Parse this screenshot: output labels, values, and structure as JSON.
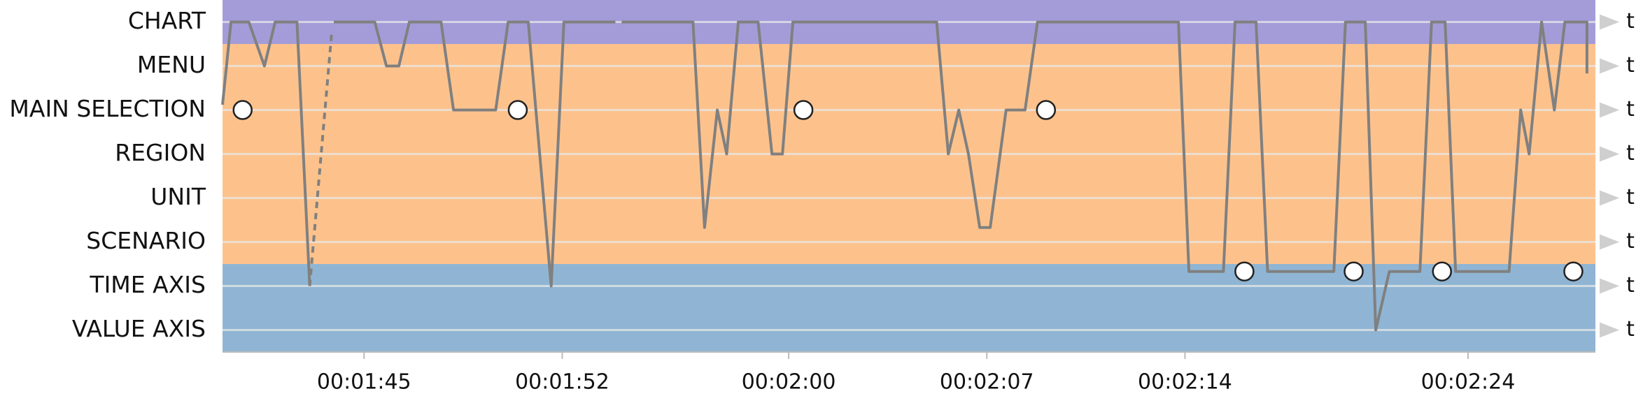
{
  "chart_data": {
    "type": "line",
    "xlim": [
      100,
      148.5
    ],
    "ylim": [
      7.5,
      -0.5
    ],
    "xticks": [
      {
        "value": 105,
        "label": "00:01:45"
      },
      {
        "value": 112,
        "label": "00:01:52"
      },
      {
        "value": 120,
        "label": "00:02:00"
      },
      {
        "value": 127,
        "label": "00:02:07"
      },
      {
        "value": 134,
        "label": "00:02:14"
      },
      {
        "value": 144,
        "label": "00:02:24"
      }
    ],
    "yticks": [
      {
        "value": 0,
        "label": "CHART"
      },
      {
        "value": 1,
        "label": "MENU"
      },
      {
        "value": 2,
        "label": "MAIN SELECTION"
      },
      {
        "value": 3,
        "label": "REGION"
      },
      {
        "value": 4,
        "label": "UNIT"
      },
      {
        "value": 5,
        "label": "SCENARIO"
      },
      {
        "value": 6,
        "label": "TIME AXIS"
      },
      {
        "value": 7,
        "label": "VALUE AXIS"
      }
    ],
    "row_end_labels": [
      "t",
      "t",
      "t",
      "t",
      "t",
      "t",
      "t",
      "t"
    ],
    "bands": [
      {
        "from": -0.5,
        "to": 0.5,
        "color": "#a49cd9"
      },
      {
        "from": 0.5,
        "to": 5.5,
        "color": "#fdc28c"
      },
      {
        "from": 5.5,
        "to": 7.5,
        "color": "#90b5d4"
      }
    ],
    "grid": true,
    "series": [
      {
        "color": "#808080",
        "style": "solid",
        "x": [
          100,
          100.3,
          100.93,
          101.48,
          101.86,
          102.63,
          103.08,
          103.5,
          103.93,
          105.38,
          105.79,
          106.23,
          106.6,
          107.72,
          108.16,
          109.65,
          110.09,
          110.8,
          111.61,
          112.06,
          113.88,
          114.0,
          114.1,
          116.62,
          117.03,
          117.48,
          117.81,
          118.22,
          118.92,
          119.41,
          119.78,
          120.15,
          125.23,
          125.64,
          126.01,
          126.35,
          126.75,
          127.12,
          127.68,
          128.35,
          128.79,
          133.77,
          134.14,
          135.36,
          135.77,
          136.51,
          136.92,
          139.26,
          139.67,
          140.37,
          140.74,
          141.22,
          142.3,
          142.71,
          143.19,
          143.56,
          145.45,
          145.86,
          146.16,
          146.6,
          147.05,
          147.42,
          148.2,
          148.2
        ],
        "values": [
          1.88,
          0,
          0,
          1,
          0,
          0,
          6,
          null,
          0,
          0,
          1,
          1,
          0,
          0,
          2,
          2,
          0,
          0,
          6,
          0,
          0,
          null,
          0,
          0,
          4.67,
          2,
          3,
          0,
          0,
          3,
          3,
          0,
          0,
          3,
          2,
          3,
          4.67,
          4.67,
          2,
          2,
          0,
          0,
          5.67,
          5.67,
          0,
          0,
          5.67,
          5.67,
          0,
          0,
          7,
          5.67,
          5.67,
          0,
          0,
          5.67,
          5.67,
          2,
          3,
          0,
          2,
          0,
          0,
          1.17
        ]
      },
      {
        "color": "#808080",
        "style": "dashed",
        "x": [
          103.08,
          103.86
        ],
        "values": [
          6,
          0.21
        ]
      }
    ],
    "markers": {
      "x": [
        100.71,
        110.43,
        120.52,
        129.09,
        136.1,
        139.96,
        143.08,
        147.72
      ],
      "values": [
        2,
        2,
        2,
        2,
        5.67,
        5.67,
        5.67,
        5.67
      ]
    }
  }
}
